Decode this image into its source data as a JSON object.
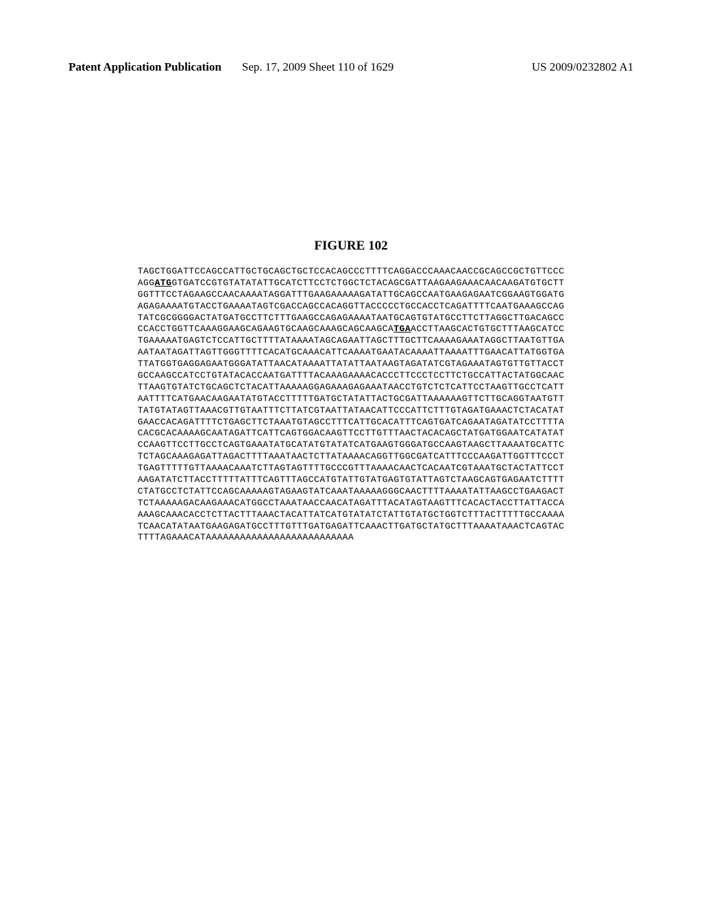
{
  "header": {
    "left": "Patent Application Publication",
    "center": "Sep. 17, 2009  Sheet 110 of 1629",
    "right": "US 2009/0232802 A1"
  },
  "figure": {
    "title": "FIGURE 102",
    "sequence_lines": [
      {
        "pre": "TAGCTGGATTCCAGCCATTGCTGCAGCTGCTCCACAGCCCTTTTCAGGACCCAAACAACCGCAGCCGCTGTTCCC",
        "codon": "",
        "post": ""
      },
      {
        "pre": "AGG",
        "codon": "ATG",
        "post": "GTGATCCGTGTATATATTGCATCTTCCTCTGGCTCTACAGCGATTAAGAAGAAACAACAAGATGTGCTT"
      },
      {
        "pre": "GGTTTCCTAGAAGCCAACAAAATAGGATTTGAAGAAAAAGATATTGCAGCCAATGAAGAGAATCGGAAGTGGATG",
        "codon": "",
        "post": ""
      },
      {
        "pre": "AGAGAAAATGTACCTGAAAATAGTCGACCAGCCACAGGTTACCCCCTGCCACCTCAGATTTTCAATGAAAGCCAG",
        "codon": "",
        "post": ""
      },
      {
        "pre": "TATCGCGGGGACTATGATGCCTTCTTTGAAGCCAGAGAAAATAATGCAGTGTATGCCTTCTTAGGCTTGACAGCC",
        "codon": "",
        "post": ""
      },
      {
        "pre": "CCACCTGGTTCAAAGGAAGCAGAAGTGCAAGCAAAGCAGCAAGCA",
        "codon": "TGA",
        "post": "ACCTTAAGCACTGTGCTTTAAGCATCC"
      },
      {
        "pre": "TGAAAAATGAGTCTCCATTGCTTTTATAAAATAGCAGAATTAGCTTTGCTTCAAAAGAAATAGGCTTAATGTTGA",
        "codon": "",
        "post": ""
      },
      {
        "pre": "AATAATAGATTAGTTGGGTTTTCACATGCAAACATTCAAAATGAATACAAAATTAAAATTTGAACATTATGGTGA",
        "codon": "",
        "post": ""
      },
      {
        "pre": "TTATGGTGAGGAGAATGGGATATTAACATAAAATTATATTAATAAGTAGATATCGTAGAAATAGTGTTGTTACCT",
        "codon": "",
        "post": ""
      },
      {
        "pre": "GCCAAGCCATCCTGTATACACCAATGATTTTACAAAGAAAACACCCTTCCCTCCTTCTGCCATTACTATGGCAAC",
        "codon": "",
        "post": ""
      },
      {
        "pre": "TTAAGTGTATCTGCAGCTCTACATTAAAAAGGAGAAAGAGAAATAACCTGTCTCTCATTCCTAAGTTGCCTCATT",
        "codon": "",
        "post": ""
      },
      {
        "pre": "AATTTTCATGAACAAGAATATGTACCTTTTTGATGCTATATTACTGCGATTAAAAAAGTTCTTGCAGGTAATGTT",
        "codon": "",
        "post": ""
      },
      {
        "pre": "TATGTATAGTTAAACGTTGTAATTTCTTATCGTAATTATAACATTCCCATTCTTTGTAGATGAAACTCTACATAT",
        "codon": "",
        "post": ""
      },
      {
        "pre": "GAACCACAGATTTTCTGAGCTTCTAAATGTAGCCTTTCATTGCACATTTCAGTGATCAGAATAGATATCCTTTTA",
        "codon": "",
        "post": ""
      },
      {
        "pre": "CACGCACAAAAGCAATAGATTCATTCAGTGGACAAGTTCCTTGTTTAACTACACAGCTATGATGGAATCATATAT",
        "codon": "",
        "post": ""
      },
      {
        "pre": "CCAAGTTCCTTGCCTCAGTGAAATATGCATATGTATATCATGAAGTGGGATGCCAAGTAAGCTTAAAATGCATTC",
        "codon": "",
        "post": ""
      },
      {
        "pre": "TCTAGCAAAGAGATTAGACTTTTAAATAACTCTTATAAAACAGGTTGGCGATCATTTCCCAAGATTGGTTTCCCT",
        "codon": "",
        "post": ""
      },
      {
        "pre": "TGAGTTTTTGTTAAAACAAATCTTAGTAGTTTTGCCCGTTTAAAACAACTCACAATCGTAAATGCTACTATTCCT",
        "codon": "",
        "post": ""
      },
      {
        "pre": "AAGATATCTTACCTTTTTATTTCAGTTTAGCCATGTATTGTATGAGTGTATTAGTCTAAGCAGTGAGAATCTTTT",
        "codon": "",
        "post": ""
      },
      {
        "pre": "CTATGCCTCTATTCCAGCAAAAAGTAGAAGTATCAAATAAAAAGGGCAACTTTTAAAATATTAAGCCTGAAGACT",
        "codon": "",
        "post": ""
      },
      {
        "pre": "TCTAAAAAGACAAGAAACATGGCCTAAATAACCAACATAGATTTACATAGTAAGTTTCACACTACCTTATTACCA",
        "codon": "",
        "post": ""
      },
      {
        "pre": "AAAGCAAACACCTCTTACTTTAAACTACATTATCATGTATATCTATTGTATGCTGGTCTTTACTTTTTGCCAAAA",
        "codon": "",
        "post": ""
      },
      {
        "pre": "TCAACATATAATGAAGAGATGCCTTTGTTTGATGAGATTCAAACTTGATGCTATGCTTTAAAATAAACTCAGTAC",
        "codon": "",
        "post": ""
      },
      {
        "pre": "TTTTAGAAACATAAAAAAAAAAAAAAAAAAAAAAAAAA",
        "codon": "",
        "post": ""
      }
    ]
  },
  "style": {
    "background_color": "#ffffff",
    "text_color": "#000000",
    "header_fontsize": 17,
    "figure_title_fontsize": 19,
    "sequence_fontsize": 13
  }
}
